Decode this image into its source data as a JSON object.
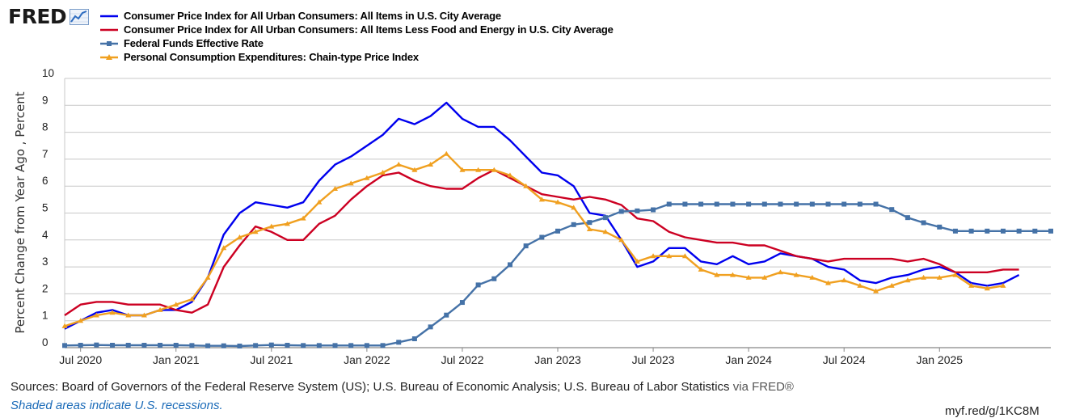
{
  "logo": {
    "text": "FRED",
    "icon": "line-chart-icon"
  },
  "footer": {
    "sources": "Sources: Board of Governors of the Federal Reserve System (US); U.S. Bureau of Economic Analysis; U.S. Bureau of Labor Statistics",
    "via": "via FRED®",
    "recession_note": "Shaded areas indicate U.S. recessions.",
    "short_link": "myf.red/g/1KC8M"
  },
  "chart_data": {
    "type": "line",
    "ylabel": "Percent Change from Year Ago , Percent",
    "xlabel": "",
    "ylim": [
      0,
      10
    ],
    "yticks": [
      "0",
      "1",
      "2",
      "3",
      "4",
      "5",
      "6",
      "7",
      "8",
      "9",
      "10"
    ],
    "x_start": "2020-06",
    "x_end": "2025-08",
    "grid": "horizontal",
    "legend_position": "top-left",
    "xtick_labels": [
      {
        "label": "Jul 2020",
        "date": "2020-07"
      },
      {
        "label": "Jan 2021",
        "date": "2021-01"
      },
      {
        "label": "Jul 2021",
        "date": "2021-07"
      },
      {
        "label": "Jan 2022",
        "date": "2022-01"
      },
      {
        "label": "Jul 2022",
        "date": "2022-07"
      },
      {
        "label": "Jan 2023",
        "date": "2023-01"
      },
      {
        "label": "Jul 2023",
        "date": "2023-07"
      },
      {
        "label": "Jan 2024",
        "date": "2024-01"
      },
      {
        "label": "Jul 2024",
        "date": "2024-07"
      },
      {
        "label": "Jan 2025",
        "date": "2025-01"
      }
    ],
    "series": [
      {
        "name": "Consumer Price Index for All Urban Consumers: All Items in U.S. City Average",
        "color": "#0000ee",
        "marker": "none",
        "start": "2020-06",
        "values": [
          0.7,
          1.0,
          1.3,
          1.4,
          1.2,
          1.2,
          1.4,
          1.4,
          1.7,
          2.6,
          4.2,
          5.0,
          5.4,
          5.3,
          5.2,
          5.4,
          6.2,
          6.8,
          7.1,
          7.5,
          7.9,
          8.5,
          8.3,
          8.6,
          9.1,
          8.5,
          8.2,
          8.2,
          7.7,
          7.1,
          6.5,
          6.4,
          6.0,
          5.0,
          4.9,
          4.0,
          3.0,
          3.2,
          3.7,
          3.7,
          3.2,
          3.1,
          3.4,
          3.1,
          3.2,
          3.5,
          3.4,
          3.3,
          3.0,
          2.9,
          2.5,
          2.4,
          2.6,
          2.7,
          2.9,
          3.0,
          2.8,
          2.4,
          2.3,
          2.4,
          2.7
        ]
      },
      {
        "name": "Consumer Price Index for All Urban Consumers: All Items Less Food and Energy in U.S. City Average",
        "color": "#cc0022",
        "marker": "none",
        "start": "2020-06",
        "values": [
          1.2,
          1.6,
          1.7,
          1.7,
          1.6,
          1.6,
          1.6,
          1.4,
          1.3,
          1.6,
          3.0,
          3.8,
          4.5,
          4.3,
          4.0,
          4.0,
          4.6,
          4.9,
          5.5,
          6.0,
          6.4,
          6.5,
          6.2,
          6.0,
          5.9,
          5.9,
          6.3,
          6.6,
          6.3,
          6.0,
          5.7,
          5.6,
          5.5,
          5.6,
          5.5,
          5.3,
          4.8,
          4.7,
          4.3,
          4.1,
          4.0,
          3.9,
          3.9,
          3.8,
          3.8,
          3.6,
          3.4,
          3.3,
          3.2,
          3.3,
          3.3,
          3.3,
          3.3,
          3.2,
          3.3,
          3.1,
          2.8,
          2.8,
          2.8,
          2.9,
          2.9
        ]
      },
      {
        "name": "Federal Funds Effective Rate",
        "color": "#4572a7",
        "marker": "square",
        "start": "2020-06",
        "values": [
          0.08,
          0.09,
          0.1,
          0.09,
          0.09,
          0.09,
          0.09,
          0.09,
          0.08,
          0.07,
          0.07,
          0.06,
          0.08,
          0.1,
          0.09,
          0.08,
          0.08,
          0.08,
          0.08,
          0.08,
          0.08,
          0.2,
          0.33,
          0.77,
          1.21,
          1.68,
          2.33,
          2.56,
          3.08,
          3.78,
          4.1,
          4.33,
          4.57,
          4.65,
          4.83,
          5.06,
          5.08,
          5.12,
          5.33,
          5.33,
          5.33,
          5.33,
          5.33,
          5.33,
          5.33,
          5.33,
          5.33,
          5.33,
          5.33,
          5.33,
          5.33,
          5.33,
          5.13,
          4.83,
          4.64,
          4.48,
          4.33,
          4.33,
          4.33,
          4.33,
          4.33,
          4.33,
          4.33
        ]
      },
      {
        "name": "Personal Consumption Expenditures: Chain-type Price Index",
        "color": "#f0a020",
        "marker": "triangle",
        "start": "2020-06",
        "values": [
          0.8,
          1.0,
          1.2,
          1.3,
          1.2,
          1.2,
          1.4,
          1.6,
          1.8,
          2.6,
          3.7,
          4.1,
          4.3,
          4.5,
          4.6,
          4.8,
          5.4,
          5.9,
          6.1,
          6.3,
          6.5,
          6.8,
          6.6,
          6.8,
          7.2,
          6.6,
          6.6,
          6.6,
          6.4,
          6.0,
          5.5,
          5.4,
          5.2,
          4.4,
          4.3,
          4.0,
          3.2,
          3.4,
          3.4,
          3.4,
          2.9,
          2.7,
          2.7,
          2.6,
          2.6,
          2.8,
          2.7,
          2.6,
          2.4,
          2.5,
          2.3,
          2.1,
          2.3,
          2.5,
          2.6,
          2.6,
          2.7,
          2.3,
          2.2,
          2.3
        ]
      }
    ]
  }
}
